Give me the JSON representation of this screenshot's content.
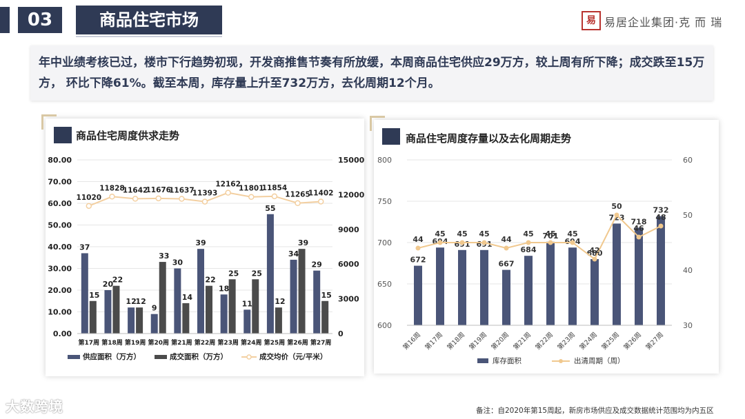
{
  "header": {
    "section_number": "03",
    "section_title": "商品住宅市场",
    "logo_mark": "易",
    "logo_text": "易居企业集团·克 而 瑞"
  },
  "summary": {
    "text": "年中业绩考核已过，楼市下行趋势初现，开发商推售节奏有所放缓，本周商品住宅供应29万方，较上周有所下降；成交跌至15万方， 环比下降61%。截至本周，库存量上升至732万方，去化周期12个月。"
  },
  "colors": {
    "navy": "#2f3a55",
    "bar_supply": "#4a5578",
    "bar_deal": "#4b4b4b",
    "price_line": "#f3cfa0",
    "cycle_line": "#f0c88e"
  },
  "chart_data": [
    {
      "type": "bar",
      "title": "商品住宅周度供求走势",
      "categories": [
        "第17周",
        "第18周",
        "第19周",
        "第20周",
        "第21周",
        "第22周",
        "第23周",
        "第24周",
        "第25周",
        "第26周",
        "第27周"
      ],
      "series": [
        {
          "name": "供应面积（万方）",
          "axis": "left",
          "type": "bar",
          "values": [
            37,
            20,
            12,
            9,
            30,
            39,
            18,
            11,
            55,
            34,
            29
          ]
        },
        {
          "name": "成交面积（万方）",
          "axis": "left",
          "type": "bar",
          "values": [
            15,
            22,
            12,
            33,
            14,
            22,
            25,
            25,
            12,
            39,
            15
          ]
        },
        {
          "name": "成交均价（元/平米）",
          "axis": "right",
          "type": "line",
          "values": [
            11020,
            11828,
            11642,
            11676,
            11637,
            11393,
            12162,
            11801,
            11854,
            11265,
            11402
          ]
        }
      ],
      "left_axis": {
        "ylim": [
          0,
          80
        ],
        "ticks": [
          "0.00",
          "10.00",
          "20.00",
          "30.00",
          "40.00",
          "50.00",
          "60.00",
          "70.00",
          "80.00"
        ]
      },
      "right_axis": {
        "ylim": [
          0,
          15000
        ],
        "ticks": [
          "0",
          "3000",
          "6000",
          "9000",
          "12000",
          "15000"
        ]
      }
    },
    {
      "type": "bar",
      "title": "商品住宅周度存量以及去化周期走势",
      "categories": [
        "第16周",
        "第17周",
        "第18周",
        "第19周",
        "第20周",
        "第21周",
        "第22周",
        "第23周",
        "第24周",
        "第25周",
        "第26周",
        "第27周"
      ],
      "series": [
        {
          "name": "库存面积",
          "axis": "left",
          "type": "bar",
          "values": [
            672,
            694,
            691,
            691,
            667,
            684,
            701,
            694,
            680,
            723,
            718,
            732
          ]
        },
        {
          "name": "出清周期（周）",
          "axis": "right",
          "type": "line",
          "values": [
            44,
            45,
            45,
            45,
            44,
            45,
            45,
            45,
            42,
            50,
            46,
            48
          ]
        }
      ],
      "left_axis": {
        "ylim": [
          600,
          800
        ],
        "ticks": [
          "600",
          "650",
          "700",
          "750",
          "800"
        ]
      },
      "right_axis": {
        "ylim": [
          30,
          60
        ],
        "ticks": [
          "30",
          "40",
          "50",
          "60"
        ]
      }
    }
  ],
  "footnote": "备注：自2020年第15周起，新房市场供应及成交数据统计范围均为内五区",
  "watermark": "大数跨境"
}
